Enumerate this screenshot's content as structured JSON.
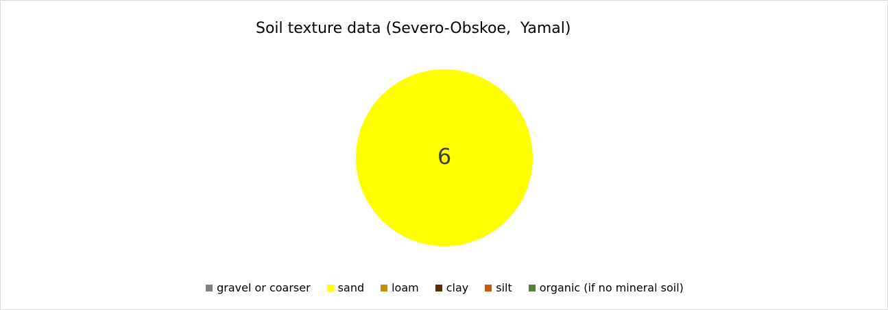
{
  "chart_data": {
    "type": "pie",
    "title": "Soil texture data (Severo-Obskoe,  Yamal)",
    "categories": [
      "gravel or coarser",
      "sand",
      "loam",
      "clay",
      "silt",
      "organic (if no mineral soil)"
    ],
    "values": [
      0,
      6,
      0,
      0,
      0,
      0
    ],
    "colors": [
      "#7f7f7f",
      "#ffff00",
      "#bf9000",
      "#5a3000",
      "#c55a11",
      "#548235"
    ],
    "data_labels": [
      "",
      "6",
      "",
      "",
      "",
      ""
    ],
    "legend_position": "bottom"
  }
}
